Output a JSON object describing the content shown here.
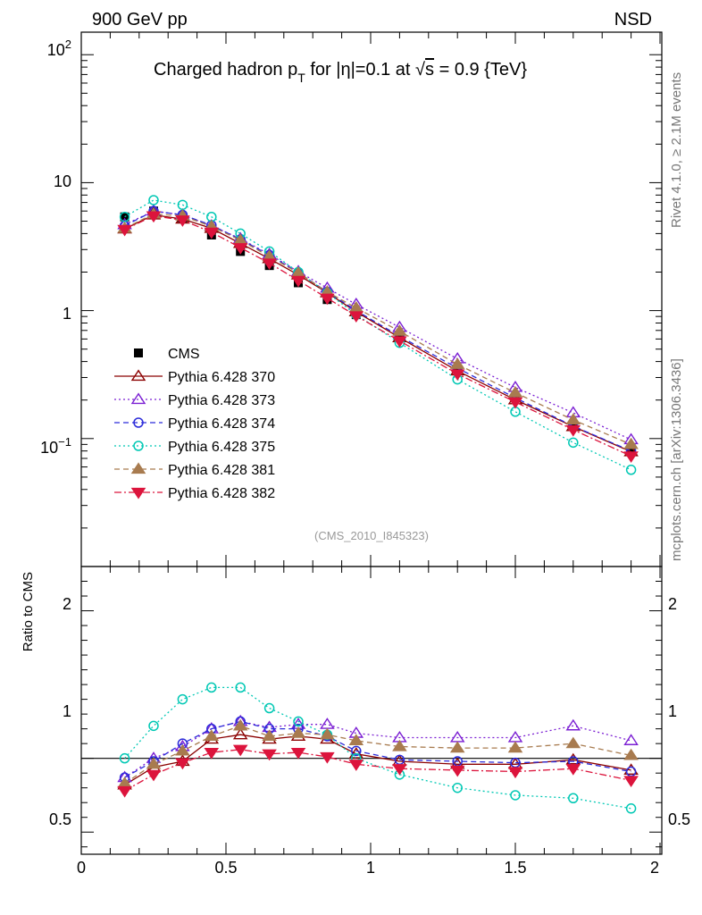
{
  "header": {
    "left": "900 GeV pp",
    "right": "NSD"
  },
  "side_labels": {
    "top": "Rivet 4.1.0, ≥ 2.1M events",
    "bottom": "mcplots.cern.ch [arXiv:1306.3436]"
  },
  "chart_data": {
    "type": "line",
    "title": "Charged hadron p_T for |η|=0.1 at √s = 0.9 {TeV}",
    "title_parts": {
      "p1": "Charged hadron p",
      "sub": "T",
      "p2": " for |η|=0.1 at ",
      "rad": "√",
      "s": "s",
      "p3": " = 0.9 {TeV}"
    },
    "analysis_tag": "(CMS_2010_I845323)",
    "ratio_ylabel": "Ratio to CMS",
    "xlim": [
      0,
      2
    ],
    "main_ylim": [
      0.01,
      150
    ],
    "main_yscale": "log",
    "ratio_ylim": [
      0.35,
      2.3
    ],
    "x_ticklabels": [
      "0",
      "0.5",
      "1",
      "1.5",
      "2"
    ],
    "main_ticklabels": {
      "t1": "1",
      "t10": "10",
      "t10m1": "10",
      "t10m1_exp": "−1",
      "t100": "10",
      "t100_exp": "2"
    },
    "ratio_ticklabels": [
      "0.5",
      "1",
      "2"
    ],
    "x": [
      0.15,
      0.25,
      0.35,
      0.45,
      0.55,
      0.65,
      0.75,
      0.85,
      0.95,
      1.1,
      1.3,
      1.5,
      1.7,
      1.9
    ],
    "reference": {
      "name": "CMS",
      "values": [
        5.4,
        6.0,
        5.3,
        3.9,
        2.9,
        2.25,
        1.65,
        1.22,
        0.93,
        0.62,
        0.35,
        0.21,
        0.125,
        0.085
      ]
    },
    "series": [
      {
        "name": "Pythia 6.428 370",
        "color": "#8b0000",
        "dash": "",
        "marker": "triangle-up-open",
        "values": [
          4.35,
          5.6,
          5.2,
          4.4,
          3.35,
          2.55,
          1.9,
          1.38,
          0.98,
          0.615,
          0.338,
          0.201,
          0.124,
          0.079
        ],
        "ratio": [
          0.82,
          0.94,
          0.98,
          1.13,
          1.16,
          1.13,
          1.15,
          1.13,
          1.03,
          0.98,
          0.96,
          0.96,
          0.99,
          0.92
        ]
      },
      {
        "name": "Pythia 6.428 373",
        "color": "#7b1fd3",
        "dash": "2,3",
        "marker": "triangle-up-open",
        "values": [
          4.7,
          6.0,
          5.6,
          4.6,
          3.65,
          2.75,
          2.02,
          1.5,
          1.12,
          0.74,
          0.42,
          0.251,
          0.159,
          0.098
        ],
        "ratio": [
          0.87,
          1.0,
          1.08,
          1.2,
          1.25,
          1.21,
          1.23,
          1.23,
          1.17,
          1.14,
          1.14,
          1.14,
          1.22,
          1.12
        ]
      },
      {
        "name": "Pythia 6.428 374",
        "color": "#2b2bd9",
        "dash": "6,4",
        "marker": "circle-open",
        "values": [
          4.6,
          6.0,
          5.6,
          4.65,
          3.6,
          2.72,
          1.98,
          1.4,
          1.0,
          0.63,
          0.355,
          0.208,
          0.125,
          0.08
        ],
        "ratio": [
          0.87,
          0.98,
          1.1,
          1.2,
          1.25,
          1.2,
          1.2,
          1.15,
          1.05,
          0.99,
          0.98,
          0.97,
          0.98,
          0.91
        ]
      },
      {
        "name": "Pythia 6.428 375",
        "color": "#00c8b4",
        "dash": "2,3",
        "marker": "circle-open",
        "values": [
          5.4,
          7.3,
          6.7,
          5.4,
          4.0,
          2.9,
          2.0,
          1.38,
          0.93,
          0.56,
          0.29,
          0.162,
          0.093,
          0.057
        ],
        "ratio": [
          1.0,
          1.22,
          1.4,
          1.48,
          1.48,
          1.34,
          1.25,
          1.16,
          1.0,
          0.89,
          0.8,
          0.75,
          0.73,
          0.66
        ]
      },
      {
        "name": "Pythia 6.428 381",
        "color": "#a87b4f",
        "dash": "6,4",
        "marker": "triangle-up-filled",
        "values": [
          4.4,
          5.7,
          5.5,
          4.55,
          3.55,
          2.65,
          1.97,
          1.4,
          1.05,
          0.69,
          0.38,
          0.228,
          0.14,
          0.09
        ],
        "ratio": [
          0.83,
          0.96,
          1.05,
          1.15,
          1.22,
          1.15,
          1.17,
          1.16,
          1.12,
          1.08,
          1.07,
          1.07,
          1.1,
          1.02
        ]
      },
      {
        "name": "Pythia 6.428 382",
        "color": "#dc143c",
        "dash": "8,3,2,3",
        "marker": "triangle-down-filled",
        "values": [
          4.3,
          5.5,
          5.1,
          4.1,
          3.1,
          2.35,
          1.72,
          1.25,
          0.91,
          0.58,
          0.32,
          0.193,
          0.117,
          0.073
        ],
        "ratio": [
          0.78,
          0.89,
          0.97,
          1.04,
          1.06,
          1.03,
          1.04,
          1.01,
          0.96,
          0.93,
          0.92,
          0.91,
          0.93,
          0.85
        ]
      }
    ]
  }
}
